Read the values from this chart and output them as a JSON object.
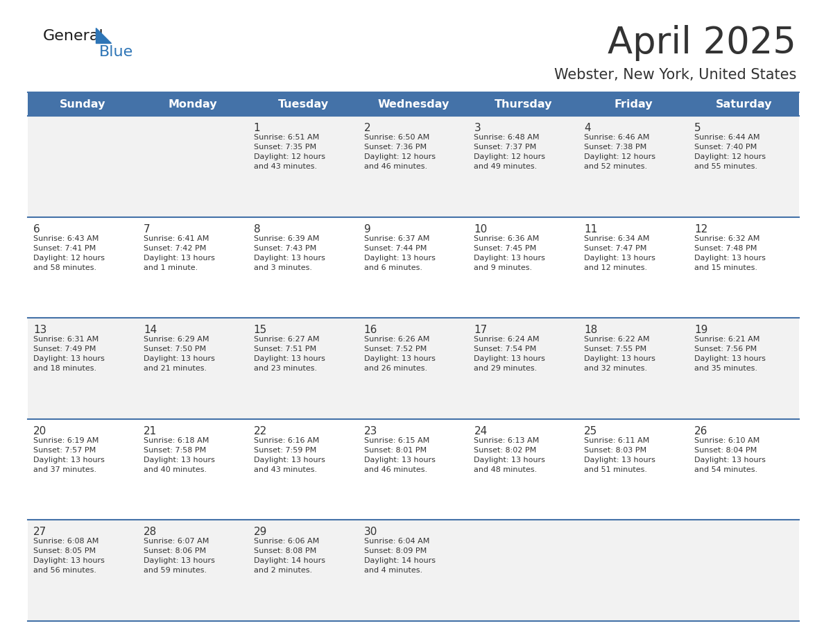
{
  "title": "April 2025",
  "subtitle": "Webster, New York, United States",
  "header_bg": "#4472A8",
  "header_text_color": "#FFFFFF",
  "row_bg_odd": "#F2F2F2",
  "row_bg_even": "#FFFFFF",
  "border_color": "#4472A8",
  "text_color": "#333333",
  "days_of_week": [
    "Sunday",
    "Monday",
    "Tuesday",
    "Wednesday",
    "Thursday",
    "Friday",
    "Saturday"
  ],
  "weeks": [
    [
      {
        "day": "",
        "info": ""
      },
      {
        "day": "",
        "info": ""
      },
      {
        "day": "1",
        "info": "Sunrise: 6:51 AM\nSunset: 7:35 PM\nDaylight: 12 hours\nand 43 minutes."
      },
      {
        "day": "2",
        "info": "Sunrise: 6:50 AM\nSunset: 7:36 PM\nDaylight: 12 hours\nand 46 minutes."
      },
      {
        "day": "3",
        "info": "Sunrise: 6:48 AM\nSunset: 7:37 PM\nDaylight: 12 hours\nand 49 minutes."
      },
      {
        "day": "4",
        "info": "Sunrise: 6:46 AM\nSunset: 7:38 PM\nDaylight: 12 hours\nand 52 minutes."
      },
      {
        "day": "5",
        "info": "Sunrise: 6:44 AM\nSunset: 7:40 PM\nDaylight: 12 hours\nand 55 minutes."
      }
    ],
    [
      {
        "day": "6",
        "info": "Sunrise: 6:43 AM\nSunset: 7:41 PM\nDaylight: 12 hours\nand 58 minutes."
      },
      {
        "day": "7",
        "info": "Sunrise: 6:41 AM\nSunset: 7:42 PM\nDaylight: 13 hours\nand 1 minute."
      },
      {
        "day": "8",
        "info": "Sunrise: 6:39 AM\nSunset: 7:43 PM\nDaylight: 13 hours\nand 3 minutes."
      },
      {
        "day": "9",
        "info": "Sunrise: 6:37 AM\nSunset: 7:44 PM\nDaylight: 13 hours\nand 6 minutes."
      },
      {
        "day": "10",
        "info": "Sunrise: 6:36 AM\nSunset: 7:45 PM\nDaylight: 13 hours\nand 9 minutes."
      },
      {
        "day": "11",
        "info": "Sunrise: 6:34 AM\nSunset: 7:47 PM\nDaylight: 13 hours\nand 12 minutes."
      },
      {
        "day": "12",
        "info": "Sunrise: 6:32 AM\nSunset: 7:48 PM\nDaylight: 13 hours\nand 15 minutes."
      }
    ],
    [
      {
        "day": "13",
        "info": "Sunrise: 6:31 AM\nSunset: 7:49 PM\nDaylight: 13 hours\nand 18 minutes."
      },
      {
        "day": "14",
        "info": "Sunrise: 6:29 AM\nSunset: 7:50 PM\nDaylight: 13 hours\nand 21 minutes."
      },
      {
        "day": "15",
        "info": "Sunrise: 6:27 AM\nSunset: 7:51 PM\nDaylight: 13 hours\nand 23 minutes."
      },
      {
        "day": "16",
        "info": "Sunrise: 6:26 AM\nSunset: 7:52 PM\nDaylight: 13 hours\nand 26 minutes."
      },
      {
        "day": "17",
        "info": "Sunrise: 6:24 AM\nSunset: 7:54 PM\nDaylight: 13 hours\nand 29 minutes."
      },
      {
        "day": "18",
        "info": "Sunrise: 6:22 AM\nSunset: 7:55 PM\nDaylight: 13 hours\nand 32 minutes."
      },
      {
        "day": "19",
        "info": "Sunrise: 6:21 AM\nSunset: 7:56 PM\nDaylight: 13 hours\nand 35 minutes."
      }
    ],
    [
      {
        "day": "20",
        "info": "Sunrise: 6:19 AM\nSunset: 7:57 PM\nDaylight: 13 hours\nand 37 minutes."
      },
      {
        "day": "21",
        "info": "Sunrise: 6:18 AM\nSunset: 7:58 PM\nDaylight: 13 hours\nand 40 minutes."
      },
      {
        "day": "22",
        "info": "Sunrise: 6:16 AM\nSunset: 7:59 PM\nDaylight: 13 hours\nand 43 minutes."
      },
      {
        "day": "23",
        "info": "Sunrise: 6:15 AM\nSunset: 8:01 PM\nDaylight: 13 hours\nand 46 minutes."
      },
      {
        "day": "24",
        "info": "Sunrise: 6:13 AM\nSunset: 8:02 PM\nDaylight: 13 hours\nand 48 minutes."
      },
      {
        "day": "25",
        "info": "Sunrise: 6:11 AM\nSunset: 8:03 PM\nDaylight: 13 hours\nand 51 minutes."
      },
      {
        "day": "26",
        "info": "Sunrise: 6:10 AM\nSunset: 8:04 PM\nDaylight: 13 hours\nand 54 minutes."
      }
    ],
    [
      {
        "day": "27",
        "info": "Sunrise: 6:08 AM\nSunset: 8:05 PM\nDaylight: 13 hours\nand 56 minutes."
      },
      {
        "day": "28",
        "info": "Sunrise: 6:07 AM\nSunset: 8:06 PM\nDaylight: 13 hours\nand 59 minutes."
      },
      {
        "day": "29",
        "info": "Sunrise: 6:06 AM\nSunset: 8:08 PM\nDaylight: 14 hours\nand 2 minutes."
      },
      {
        "day": "30",
        "info": "Sunrise: 6:04 AM\nSunset: 8:09 PM\nDaylight: 14 hours\nand 4 minutes."
      },
      {
        "day": "",
        "info": ""
      },
      {
        "day": "",
        "info": ""
      },
      {
        "day": "",
        "info": ""
      }
    ]
  ],
  "logo_color1": "#1a1a1a",
  "logo_color2": "#2E75B6",
  "logo_triangle_color": "#2E75B6",
  "background_color": "#FFFFFF",
  "cell_text_fontsize": 8.0,
  "day_num_fontsize": 11,
  "header_fontsize": 11.5,
  "title_fontsize": 38,
  "subtitle_fontsize": 15
}
